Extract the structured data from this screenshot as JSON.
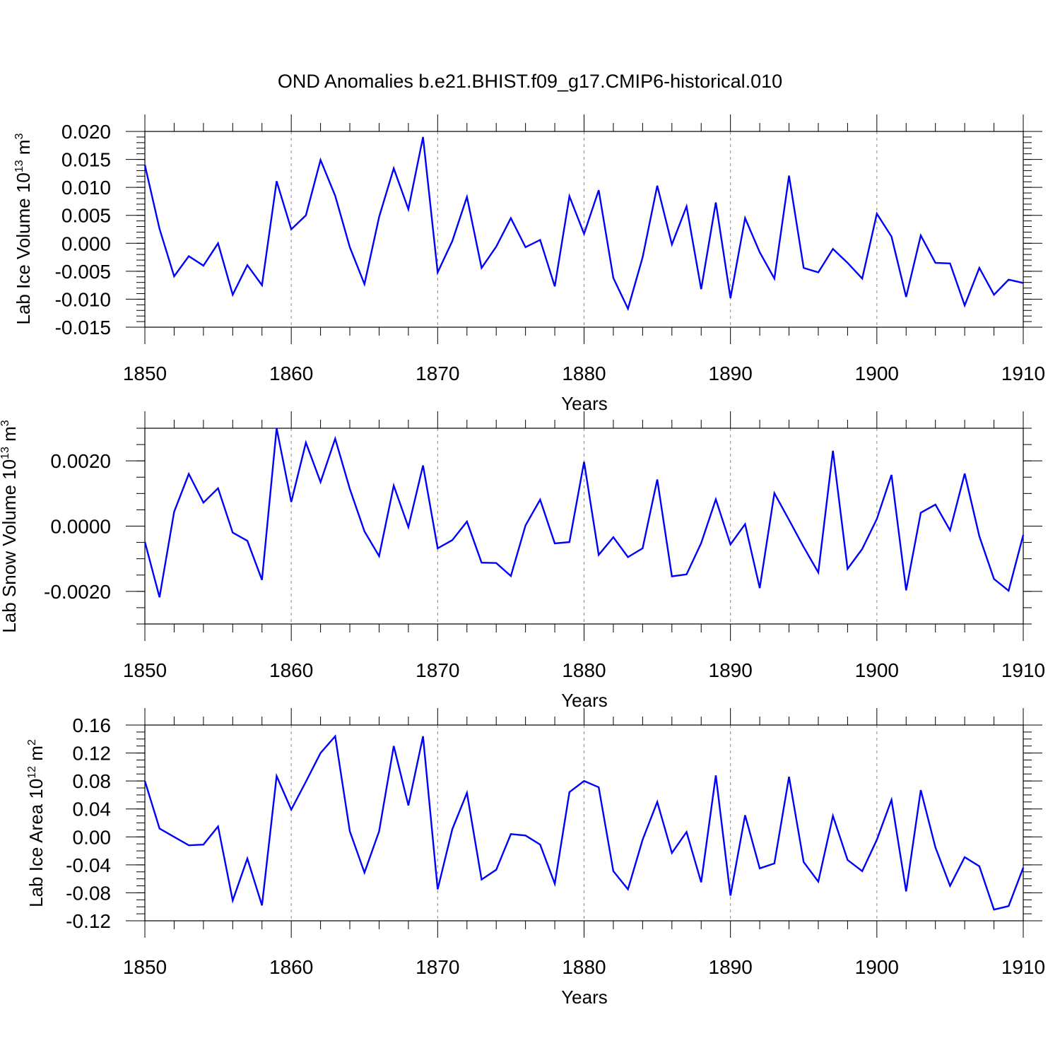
{
  "figure_title": "OND Anomalies b.e21.BHIST.f09_g17.CMIP6-historical.010",
  "chart_data": [
    {
      "type": "line",
      "id": "ice_volume",
      "ylabel": "Lab Ice Volume 10",
      "ylabel_exponent": "13",
      "ylabel_unit": "m",
      "ylabel_unit_exponent": "3",
      "xlabel": "Years",
      "xlim": [
        1850,
        1910
      ],
      "ylim": [
        -0.015,
        0.02
      ],
      "x_ticks": [
        1850,
        1860,
        1870,
        1880,
        1890,
        1900,
        1910
      ],
      "y_ticks": [
        -0.015,
        -0.01,
        -0.005,
        0.0,
        0.005,
        0.01,
        0.015,
        0.02
      ],
      "y_tick_labels": [
        "-0.015",
        "-0.010",
        "-0.005",
        "0.000",
        "0.005",
        "0.010",
        "0.015",
        "0.020"
      ],
      "y_minor_step": 0.001,
      "color": "#0000ff",
      "x": [
        1850,
        1851,
        1852,
        1853,
        1854,
        1855,
        1856,
        1857,
        1858,
        1859,
        1860,
        1861,
        1862,
        1863,
        1864,
        1865,
        1866,
        1867,
        1868,
        1869,
        1870,
        1871,
        1872,
        1873,
        1874,
        1875,
        1876,
        1877,
        1878,
        1879,
        1880,
        1881,
        1882,
        1883,
        1884,
        1885,
        1886,
        1887,
        1888,
        1889,
        1890,
        1891,
        1892,
        1893,
        1894,
        1895,
        1896,
        1897,
        1898,
        1899,
        1900,
        1901,
        1902,
        1903,
        1904,
        1905,
        1906,
        1907,
        1908,
        1909,
        1910
      ],
      "values": [
        0.014,
        0.0026,
        -0.0059,
        -0.0023,
        -0.004,
        0.0,
        -0.0092,
        -0.0039,
        -0.0075,
        0.0111,
        0.0025,
        0.005,
        0.0149,
        0.0085,
        -0.0007,
        -0.0073,
        0.0047,
        0.0134,
        0.0061,
        0.019,
        -0.0052,
        0.0004,
        0.0083,
        -0.0044,
        -0.0006,
        0.0045,
        -0.0007,
        0.0006,
        -0.0077,
        0.0084,
        0.0017,
        0.0095,
        -0.0062,
        -0.0117,
        -0.0025,
        0.0103,
        -0.0002,
        0.0066,
        -0.0082,
        0.0073,
        -0.0098,
        0.0045,
        -0.0016,
        -0.0063,
        0.0121,
        -0.0044,
        -0.0052,
        -0.001,
        -0.0035,
        -0.0063,
        0.0053,
        0.0012,
        -0.0096,
        0.0014,
        -0.0035,
        -0.0036,
        -0.0111,
        -0.0044,
        -0.0092,
        -0.0065,
        -0.0071
      ]
    },
    {
      "type": "line",
      "id": "snow_volume",
      "ylabel": "Lab Snow Volume 10",
      "ylabel_exponent": "13",
      "ylabel_unit": "m",
      "ylabel_unit_exponent": "3",
      "xlabel": "Years",
      "xlim": [
        1850,
        1910
      ],
      "ylim": [
        -0.003,
        0.003
      ],
      "x_ticks": [
        1850,
        1860,
        1870,
        1880,
        1890,
        1900,
        1910
      ],
      "y_ticks": [
        -0.002,
        0.0,
        0.002
      ],
      "y_tick_labels": [
        "-0.0020",
        "0.0000",
        "0.0020"
      ],
      "y_minor_step": 0.0005,
      "color": "#0000ff",
      "x": [
        1850,
        1851,
        1852,
        1853,
        1854,
        1855,
        1856,
        1857,
        1858,
        1859,
        1860,
        1861,
        1862,
        1863,
        1864,
        1865,
        1866,
        1867,
        1868,
        1869,
        1870,
        1871,
        1872,
        1873,
        1874,
        1875,
        1876,
        1877,
        1878,
        1879,
        1880,
        1881,
        1882,
        1883,
        1884,
        1885,
        1886,
        1887,
        1888,
        1889,
        1890,
        1891,
        1892,
        1893,
        1894,
        1895,
        1896,
        1897,
        1898,
        1899,
        1900,
        1901,
        1902,
        1903,
        1904,
        1905,
        1906,
        1907,
        1908,
        1909,
        1910
      ],
      "values": [
        -0.00048,
        -0.00218,
        0.00044,
        0.0016,
        0.00072,
        0.00116,
        -0.0002,
        -0.00045,
        -0.00165,
        0.003,
        0.00074,
        0.00256,
        0.00135,
        0.00268,
        0.00114,
        -0.00016,
        -0.00092,
        0.00124,
        -3e-05,
        0.00186,
        -0.00068,
        -0.00043,
        0.00014,
        -0.00112,
        -0.00113,
        -0.00153,
        2e-05,
        0.00081,
        -0.00053,
        -0.00049,
        0.00197,
        -0.00088,
        -0.00034,
        -0.00095,
        -0.00068,
        0.00143,
        -0.00154,
        -0.00148,
        -0.00052,
        0.00082,
        -0.00056,
        6e-05,
        -0.0019,
        0.00101,
        0.00019,
        -0.00064,
        -0.00142,
        0.00231,
        -0.00131,
        -0.0007,
        0.00022,
        0.00157,
        -0.00197,
        0.00041,
        0.00066,
        -0.00013,
        0.00161,
        -0.00031,
        -0.00162,
        -0.00198,
        -0.00027
      ]
    },
    {
      "type": "line",
      "id": "ice_area",
      "ylabel": "Lab Ice Area 10",
      "ylabel_exponent": "12",
      "ylabel_unit": "m",
      "ylabel_unit_exponent": "2",
      "xlabel": "Years",
      "xlim": [
        1850,
        1910
      ],
      "ylim": [
        -0.12,
        0.16
      ],
      "x_ticks": [
        1850,
        1860,
        1870,
        1880,
        1890,
        1900,
        1910
      ],
      "y_ticks": [
        -0.12,
        -0.08,
        -0.04,
        0.0,
        0.04,
        0.08,
        0.12,
        0.16
      ],
      "y_tick_labels": [
        "-0.12",
        "-0.08",
        "-0.04",
        "0.00",
        "0.04",
        "0.08",
        "0.12",
        "0.16"
      ],
      "y_minor_step": 0.01,
      "color": "#0000ff",
      "x": [
        1850,
        1851,
        1852,
        1853,
        1854,
        1855,
        1856,
        1857,
        1858,
        1859,
        1860,
        1861,
        1862,
        1863,
        1864,
        1865,
        1866,
        1867,
        1868,
        1869,
        1870,
        1871,
        1872,
        1873,
        1874,
        1875,
        1876,
        1877,
        1878,
        1879,
        1880,
        1881,
        1882,
        1883,
        1884,
        1885,
        1886,
        1887,
        1888,
        1889,
        1890,
        1891,
        1892,
        1893,
        1894,
        1895,
        1896,
        1897,
        1898,
        1899,
        1900,
        1901,
        1902,
        1903,
        1904,
        1905,
        1906,
        1907,
        1908,
        1909,
        1910
      ],
      "values": [
        0.08,
        0.012,
        0.0,
        -0.012,
        -0.011,
        0.015,
        -0.091,
        -0.031,
        -0.098,
        0.087,
        0.039,
        0.079,
        0.12,
        0.144,
        0.008,
        -0.051,
        0.008,
        0.13,
        0.045,
        0.144,
        -0.075,
        0.011,
        0.063,
        -0.061,
        -0.047,
        0.004,
        0.002,
        -0.011,
        -0.067,
        0.064,
        0.08,
        0.071,
        -0.049,
        -0.075,
        -0.004,
        0.05,
        -0.023,
        0.007,
        -0.065,
        0.088,
        -0.084,
        0.031,
        -0.045,
        -0.038,
        0.086,
        -0.036,
        -0.064,
        0.03,
        -0.033,
        -0.049,
        -0.004,
        0.053,
        -0.078,
        0.067,
        -0.015,
        -0.07,
        -0.029,
        -0.042,
        -0.104,
        -0.099,
        -0.044
      ]
    }
  ]
}
